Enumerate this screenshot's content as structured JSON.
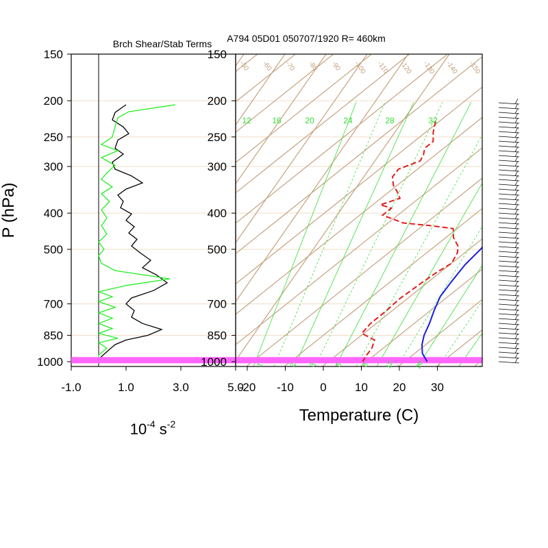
{
  "figure": {
    "title": "A794 05D01 050707/1920 R= 460km",
    "left_panel_title": "Brch Shear/Stab Terms",
    "ylabel": "P (hPa)",
    "left_xlabel_base": "10",
    "left_xlabel_exp": "-4",
    "left_xlabel_unit": " s",
    "left_xlabel_unit_exp": "-2",
    "right_xlabel": "Temperature (C)"
  },
  "colors": {
    "frame": "#000000",
    "isotherm": "#c4a27e",
    "mixing_ratio": "#33dd33",
    "temperature": "#1a1ae6",
    "dewpoint": "#e61a1a",
    "highlight_band": "#ff66ff",
    "left_black": "#000000",
    "left_green": "#22ee22"
  },
  "chart_data": [
    {
      "type": "line",
      "panel": "brch-shear-stab-terms",
      "title": "Brch Shear/Stab Terms",
      "y_axis": {
        "label": "P (hPa)",
        "scale": "log",
        "range": [
          1030,
          150
        ],
        "ticks": [
          150,
          200,
          250,
          300,
          400,
          500,
          700,
          850,
          1000
        ]
      },
      "x_axis": {
        "label": "10^-4 s^-2",
        "range": [
          -1.0,
          5.0
        ],
        "tick_labels": [
          "-1.0",
          "1.0",
          "3.0",
          "5.0"
        ],
        "ticks": [
          -1.0,
          1.0,
          3.0,
          5.0
        ]
      },
      "zero_line": 0,
      "series": [
        {
          "color": "black",
          "points": [
            [
              1.0,
              205
            ],
            [
              0.6,
              215
            ],
            [
              0.5,
              225
            ],
            [
              0.9,
              235
            ],
            [
              1.1,
              245
            ],
            [
              0.7,
              255
            ],
            [
              0.6,
              268
            ],
            [
              0.9,
              278
            ],
            [
              0.5,
              292
            ],
            [
              0.6,
              305
            ],
            [
              1.2,
              318
            ],
            [
              1.6,
              332
            ],
            [
              1.0,
              345
            ],
            [
              0.7,
              358
            ],
            [
              0.9,
              372
            ],
            [
              0.8,
              387
            ],
            [
              1.2,
              402
            ],
            [
              1.0,
              418
            ],
            [
              1.3,
              435
            ],
            [
              1.1,
              452
            ],
            [
              1.4,
              470
            ],
            [
              1.2,
              490
            ],
            [
              1.5,
              510
            ],
            [
              1.9,
              535
            ],
            [
              1.6,
              560
            ],
            [
              2.1,
              585
            ],
            [
              2.5,
              615
            ],
            [
              2.0,
              645
            ],
            [
              1.2,
              675
            ],
            [
              1.0,
              700
            ],
            [
              1.3,
              730
            ],
            [
              1.2,
              760
            ],
            [
              1.6,
              790
            ],
            [
              2.3,
              820
            ],
            [
              1.8,
              850
            ],
            [
              1.0,
              875
            ],
            [
              0.6,
              900
            ],
            [
              0.3,
              940
            ],
            [
              0.0,
              985
            ]
          ]
        },
        {
          "color": "green",
          "points": [
            [
              2.8,
              205
            ],
            [
              1.1,
              214
            ],
            [
              0.7,
              222
            ],
            [
              0.6,
              235
            ],
            [
              0.5,
              250
            ],
            [
              0.1,
              262
            ],
            [
              0.7,
              272
            ],
            [
              0.1,
              284
            ],
            [
              0.6,
              298
            ],
            [
              0.3,
              312
            ],
            [
              0.1,
              325
            ],
            [
              0.5,
              340
            ],
            [
              0.1,
              355
            ],
            [
              0.4,
              372
            ],
            [
              0.1,
              392
            ],
            [
              0.3,
              412
            ],
            [
              0.1,
              432
            ],
            [
              0.3,
              455
            ],
            [
              0.0,
              478
            ],
            [
              0.2,
              500
            ],
            [
              0.0,
              520
            ],
            [
              0.1,
              545
            ],
            [
              0.6,
              570
            ],
            [
              2.6,
              600
            ],
            [
              1.0,
              625
            ],
            [
              0.0,
              650
            ],
            [
              0.5,
              670
            ],
            [
              0.0,
              690
            ],
            [
              0.6,
              715
            ],
            [
              0.0,
              740
            ],
            [
              0.5,
              765
            ],
            [
              0.0,
              790
            ],
            [
              0.5,
              815
            ],
            [
              0.0,
              840
            ],
            [
              0.7,
              865
            ],
            [
              0.0,
              890
            ],
            [
              0.3,
              920
            ],
            [
              0.0,
              960
            ],
            [
              0.0,
              985
            ]
          ]
        }
      ]
    },
    {
      "type": "line",
      "panel": "skew-t",
      "title": "A794 05D01 050707/1920 R= 460km",
      "y_axis": {
        "label": "P (hPa)",
        "scale": "log",
        "range": [
          1030,
          150
        ],
        "ticks": [
          150,
          200,
          250,
          300,
          400,
          500,
          700,
          850,
          1000
        ]
      },
      "x_axis": {
        "label": "Temperature (C)",
        "tick_labels": [
          "-20",
          "-10",
          "0",
          "10",
          "20",
          "30"
        ],
        "ticks": [
          -20,
          -10,
          0,
          10,
          20,
          30
        ]
      },
      "isotherm_labels": [
        "-50",
        "-60",
        "-70",
        "-80",
        "-90",
        "-100",
        "-110",
        "-120",
        "-130",
        "-140",
        "-150"
      ],
      "mixing_ratio_labels_top": [
        "12",
        "16",
        "20",
        "24",
        "28",
        "32"
      ],
      "mixing_ratio_labels_bottom": [
        "1",
        "2",
        "3",
        "5",
        "8",
        "12",
        "20"
      ],
      "highlight_band_hpa": [
        972,
        1010
      ],
      "series": [
        {
          "name": "temperature",
          "color": "blue",
          "points": [
            [
              -20,
              200
            ],
            [
              -17,
              220
            ],
            [
              -14,
              245
            ],
            [
              -11,
              270
            ],
            [
              -8,
              300
            ],
            [
              -6.5,
              325
            ],
            [
              -4,
              355
            ],
            [
              -2,
              385
            ],
            [
              0,
              420
            ],
            [
              1.5,
              460
            ],
            [
              3,
              500
            ],
            [
              4,
              550
            ],
            [
              6,
              610
            ],
            [
              8,
              670
            ],
            [
              11,
              730
            ],
            [
              14,
              790
            ],
            [
              16.5,
              850
            ],
            [
              19,
              900
            ],
            [
              22,
              950
            ],
            [
              26,
              1000
            ]
          ]
        },
        {
          "name": "dewpoint",
          "color": "red",
          "points": [
            [
              -51,
              227
            ],
            [
              -48,
              243
            ],
            [
              -45,
              257
            ],
            [
              -45,
              268
            ],
            [
              -43,
              280
            ],
            [
              -42,
              290
            ],
            [
              -45,
              305
            ],
            [
              -44,
              320
            ],
            [
              -41,
              337
            ],
            [
              -38,
              350
            ],
            [
              -35,
              365
            ],
            [
              -38,
              380
            ],
            [
              -34,
              388
            ],
            [
              -34,
              405
            ],
            [
              -26,
              425
            ],
            [
              -18,
              432
            ],
            [
              -11,
              440
            ],
            [
              -8,
              465
            ],
            [
              -4,
              490
            ],
            [
              -2,
              510
            ],
            [
              0,
              545
            ],
            [
              -1,
              580
            ],
            [
              -1.5,
              620
            ],
            [
              -2,
              680
            ],
            [
              -1.5,
              735
            ],
            [
              -1.5,
              790
            ],
            [
              -0.5,
              840
            ],
            [
              5,
              875
            ],
            [
              7,
              920
            ],
            [
              8,
              965
            ],
            [
              9,
              1000
            ]
          ]
        }
      ]
    }
  ]
}
